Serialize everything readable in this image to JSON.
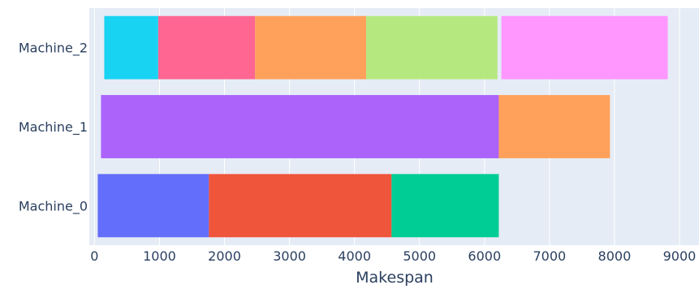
{
  "chart_data": {
    "type": "bar",
    "orientation": "horizontal",
    "subtype": "gantt",
    "title": "",
    "xlabel": "Makespan",
    "ylabel": "",
    "xlim": [
      -80,
      9300
    ],
    "x_ticks": [
      0,
      1000,
      2000,
      3000,
      4000,
      5000,
      6000,
      7000,
      8000,
      9000
    ],
    "x_tick_labels": [
      "0",
      "1000",
      "2000",
      "3000",
      "4000",
      "5000",
      "6000",
      "7000",
      "8000",
      "9000"
    ],
    "categories": [
      "Machine_0",
      "Machine_1",
      "Machine_2"
    ],
    "grid": true,
    "legend": false,
    "colors": {
      "plot_background": "#e5ecf6",
      "grid": "#ffffff",
      "text": "#2a3f5f"
    },
    "tasks": [
      {
        "machine": "Machine_0",
        "start": 50,
        "end": 1760,
        "color": "#636efa"
      },
      {
        "machine": "Machine_0",
        "start": 1760,
        "end": 4570,
        "color": "#ef553b"
      },
      {
        "machine": "Machine_0",
        "start": 4570,
        "end": 6220,
        "color": "#00cc96"
      },
      {
        "machine": "Machine_1",
        "start": 100,
        "end": 6220,
        "color": "#ab63fa"
      },
      {
        "machine": "Machine_1",
        "start": 6220,
        "end": 7930,
        "color": "#ffa15a"
      },
      {
        "machine": "Machine_2",
        "start": 150,
        "end": 980,
        "color": "#19d3f3"
      },
      {
        "machine": "Machine_2",
        "start": 980,
        "end": 2470,
        "color": "#ff6692"
      },
      {
        "machine": "Machine_2",
        "start": 2470,
        "end": 4180,
        "color": "#ffa15a"
      },
      {
        "machine": "Machine_2",
        "start": 4180,
        "end": 6200,
        "color": "#b6e880"
      },
      {
        "machine": "Machine_2",
        "start": 6260,
        "end": 8820,
        "color": "#ff97ff"
      }
    ]
  }
}
